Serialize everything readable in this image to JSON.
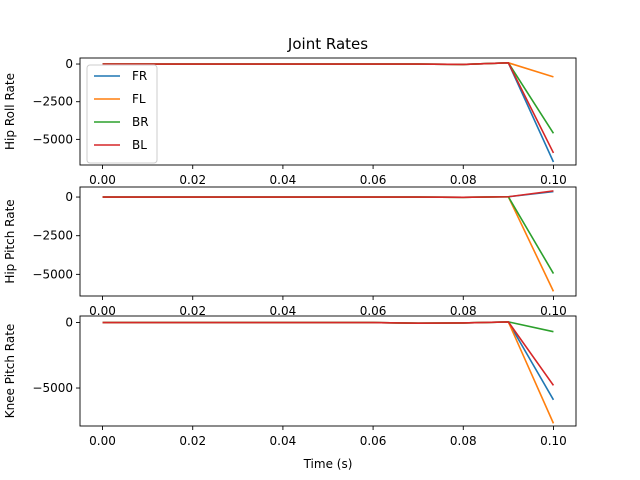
{
  "chart_data": {
    "type": "line",
    "title": "Joint Rates",
    "xlabel": "Time (s)",
    "x": [
      0.0,
      0.01,
      0.02,
      0.03,
      0.04,
      0.05,
      0.06,
      0.07,
      0.08,
      0.09,
      0.1
    ],
    "xlim": [
      -0.005,
      0.105
    ],
    "xticks": [
      0.0,
      0.02,
      0.04,
      0.06,
      0.08,
      0.1
    ],
    "xtick_labels": [
      "0.00",
      "0.02",
      "0.04",
      "0.06",
      "0.08",
      "0.10"
    ],
    "colors": {
      "FR": "#1f77b4",
      "FL": "#ff7f0e",
      "BR": "#2ca02c",
      "BL": "#d62728"
    },
    "legend": {
      "placement": "top-left",
      "entries": [
        "FR",
        "FL",
        "BR",
        "BL"
      ]
    },
    "subplots": [
      {
        "ylabel": "Hip Roll Rate",
        "ylim": [
          -6700,
          400
        ],
        "yticks": [
          0,
          -2500,
          -5000
        ],
        "ytick_labels": [
          "0",
          "−2500",
          "−5000"
        ],
        "series": [
          {
            "name": "FR",
            "values": [
              0,
              0,
              0,
              0,
              0,
              0,
              0,
              0,
              -30,
              80,
              -6500
            ]
          },
          {
            "name": "FL",
            "values": [
              0,
              0,
              0,
              0,
              0,
              0,
              0,
              0,
              -30,
              80,
              -850
            ]
          },
          {
            "name": "BR",
            "values": [
              0,
              0,
              0,
              0,
              0,
              0,
              0,
              0,
              -30,
              80,
              -4600
            ]
          },
          {
            "name": "BL",
            "values": [
              0,
              0,
              0,
              0,
              0,
              0,
              0,
              0,
              -30,
              80,
              -5900
            ]
          }
        ]
      },
      {
        "ylabel": "Hip Pitch Rate",
        "ylim": [
          -6400,
          650
        ],
        "yticks": [
          0,
          -2500,
          -5000
        ],
        "ytick_labels": [
          "0",
          "−2500",
          "−5000"
        ],
        "series": [
          {
            "name": "FR",
            "values": [
              0,
              0,
              0,
              0,
              0,
              0,
              0,
              0,
              -15,
              20,
              350
            ]
          },
          {
            "name": "FL",
            "values": [
              0,
              0,
              0,
              0,
              0,
              0,
              0,
              0,
              -15,
              20,
              -6100
            ]
          },
          {
            "name": "BR",
            "values": [
              0,
              0,
              0,
              0,
              0,
              0,
              0,
              0,
              -15,
              20,
              -4950
            ]
          },
          {
            "name": "BL",
            "values": [
              0,
              0,
              0,
              0,
              0,
              0,
              0,
              0,
              -15,
              20,
              400
            ]
          }
        ]
      },
      {
        "ylabel": "Knee Pitch Rate",
        "ylim": [
          -7900,
          500
        ],
        "yticks": [
          0,
          -5000
        ],
        "ytick_labels": [
          "0",
          "−5000"
        ],
        "series": [
          {
            "name": "FR",
            "values": [
              0,
              0,
              0,
              0,
              0,
              0,
              0,
              -50,
              -30,
              50,
              -5900
            ]
          },
          {
            "name": "FL",
            "values": [
              0,
              0,
              0,
              0,
              0,
              0,
              0,
              -50,
              -30,
              50,
              -7700
            ]
          },
          {
            "name": "BR",
            "values": [
              0,
              0,
              0,
              0,
              0,
              0,
              0,
              -50,
              -30,
              50,
              -700
            ]
          },
          {
            "name": "BL",
            "values": [
              0,
              0,
              0,
              0,
              0,
              0,
              0,
              -50,
              -30,
              50,
              -4800
            ]
          }
        ]
      }
    ]
  }
}
